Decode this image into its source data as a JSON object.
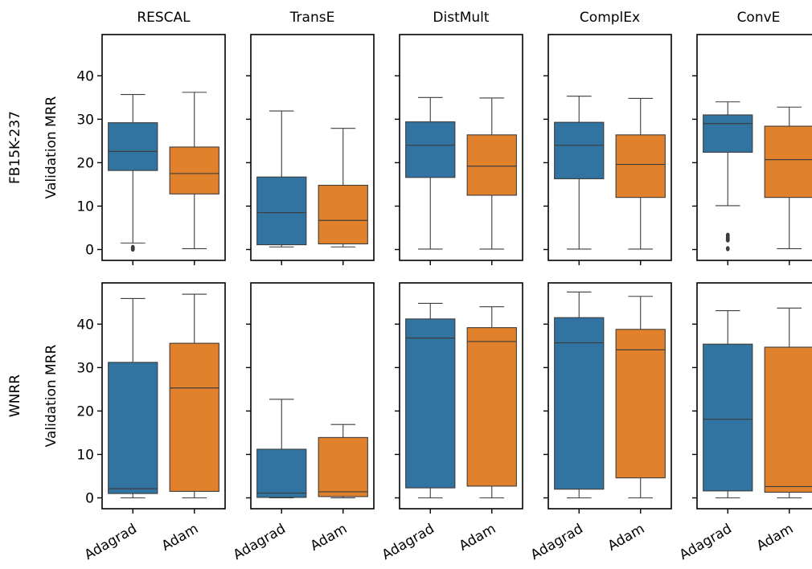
{
  "colors": {
    "Adagrad": "#3274a1",
    "Adam": "#e1812c",
    "line": "#3d3d3d"
  },
  "chart_data": {
    "type": "box",
    "categories": [
      "Adagrad",
      "Adam"
    ],
    "models": [
      "RESCAL",
      "TransE",
      "DistMult",
      "ComplEx",
      "ConvE"
    ],
    "rows": [
      {
        "label": "FB15K-237",
        "ylabel": "Validation MRR",
        "ylim": [
          -2.5,
          49.5
        ],
        "yticks": [
          0,
          10,
          20,
          30,
          40
        ],
        "yticks_text": [
          "0",
          "10",
          "20",
          "30",
          "40"
        ],
        "panels": [
          {
            "model": "RESCAL",
            "boxes": [
              {
                "name": "Adagrad",
                "whislo": 1.5,
                "q1": 18.2,
                "med": 22.6,
                "q3": 29.2,
                "whishi": 35.7,
                "fliers": [
                  0.1,
                  0.3,
                  0.5
                ]
              },
              {
                "name": "Adam",
                "whislo": 0.2,
                "q1": 12.8,
                "med": 17.5,
                "q3": 23.6,
                "whishi": 36.2,
                "fliers": []
              }
            ]
          },
          {
            "model": "TransE",
            "boxes": [
              {
                "name": "Adagrad",
                "whislo": 0.6,
                "q1": 1.1,
                "med": 8.5,
                "q3": 16.7,
                "whishi": 31.9,
                "fliers": []
              },
              {
                "name": "Adam",
                "whislo": 0.6,
                "q1": 1.3,
                "med": 6.7,
                "q3": 14.8,
                "whishi": 27.9,
                "fliers": []
              }
            ]
          },
          {
            "model": "DistMult",
            "boxes": [
              {
                "name": "Adagrad",
                "whislo": 0.1,
                "q1": 16.6,
                "med": 24.0,
                "q3": 29.4,
                "whishi": 35.0,
                "fliers": []
              },
              {
                "name": "Adam",
                "whislo": 0.1,
                "q1": 12.5,
                "med": 19.2,
                "q3": 26.4,
                "whishi": 34.9,
                "fliers": []
              }
            ]
          },
          {
            "model": "ComplEx",
            "boxes": [
              {
                "name": "Adagrad",
                "whislo": 0.1,
                "q1": 16.3,
                "med": 24.0,
                "q3": 29.3,
                "whishi": 35.3,
                "fliers": []
              },
              {
                "name": "Adam",
                "whislo": 0.1,
                "q1": 12.0,
                "med": 19.6,
                "q3": 26.4,
                "whishi": 34.8,
                "fliers": []
              }
            ]
          },
          {
            "model": "ConvE",
            "boxes": [
              {
                "name": "Adagrad",
                "whislo": 10.1,
                "q1": 22.4,
                "med": 29.0,
                "q3": 31.0,
                "whishi": 34.0,
                "fliers": [
                  3.3,
                  2.9,
                  2.5,
                  2.2,
                  0.2
                ]
              },
              {
                "name": "Adam",
                "whislo": 0.2,
                "q1": 12.0,
                "med": 20.7,
                "q3": 28.4,
                "whishi": 32.8,
                "fliers": []
              }
            ]
          }
        ]
      },
      {
        "label": "WNRR",
        "ylabel": "Validation MRR",
        "ylim": [
          -2.5,
          49.5
        ],
        "yticks": [
          0,
          10,
          20,
          30,
          40
        ],
        "yticks_text": [
          "0",
          "10",
          "20",
          "30",
          "40"
        ],
        "panels": [
          {
            "model": "RESCAL",
            "boxes": [
              {
                "name": "Adagrad",
                "whislo": 0.0,
                "q1": 1.0,
                "med": 2.1,
                "q3": 31.2,
                "whishi": 45.9,
                "fliers": []
              },
              {
                "name": "Adam",
                "whislo": 0.0,
                "q1": 1.5,
                "med": 25.3,
                "q3": 35.6,
                "whishi": 46.9,
                "fliers": []
              }
            ]
          },
          {
            "model": "TransE",
            "boxes": [
              {
                "name": "Adagrad",
                "whislo": 0.0,
                "q1": 0.1,
                "med": 1.1,
                "q3": 11.2,
                "whishi": 22.7,
                "fliers": []
              },
              {
                "name": "Adam",
                "whislo": 0.0,
                "q1": 0.3,
                "med": 1.4,
                "q3": 13.9,
                "whishi": 16.9,
                "fliers": []
              }
            ]
          },
          {
            "model": "DistMult",
            "boxes": [
              {
                "name": "Adagrad",
                "whislo": 0.0,
                "q1": 2.3,
                "med": 36.8,
                "q3": 41.2,
                "whishi": 44.8,
                "fliers": []
              },
              {
                "name": "Adam",
                "whislo": 0.0,
                "q1": 2.7,
                "med": 36.0,
                "q3": 39.2,
                "whishi": 44.0,
                "fliers": []
              }
            ]
          },
          {
            "model": "ComplEx",
            "boxes": [
              {
                "name": "Adagrad",
                "whislo": 0.0,
                "q1": 2.0,
                "med": 35.7,
                "q3": 41.5,
                "whishi": 47.4,
                "fliers": []
              },
              {
                "name": "Adam",
                "whislo": 0.0,
                "q1": 4.6,
                "med": 34.1,
                "q3": 38.8,
                "whishi": 46.4,
                "fliers": []
              }
            ]
          },
          {
            "model": "ConvE",
            "boxes": [
              {
                "name": "Adagrad",
                "whislo": 0.0,
                "q1": 1.6,
                "med": 18.1,
                "q3": 35.4,
                "whishi": 43.1,
                "fliers": []
              },
              {
                "name": "Adam",
                "whislo": 0.0,
                "q1": 1.3,
                "med": 2.6,
                "q3": 34.7,
                "whishi": 43.7,
                "fliers": []
              }
            ]
          }
        ]
      }
    ],
    "grid": false,
    "legend": "none"
  }
}
